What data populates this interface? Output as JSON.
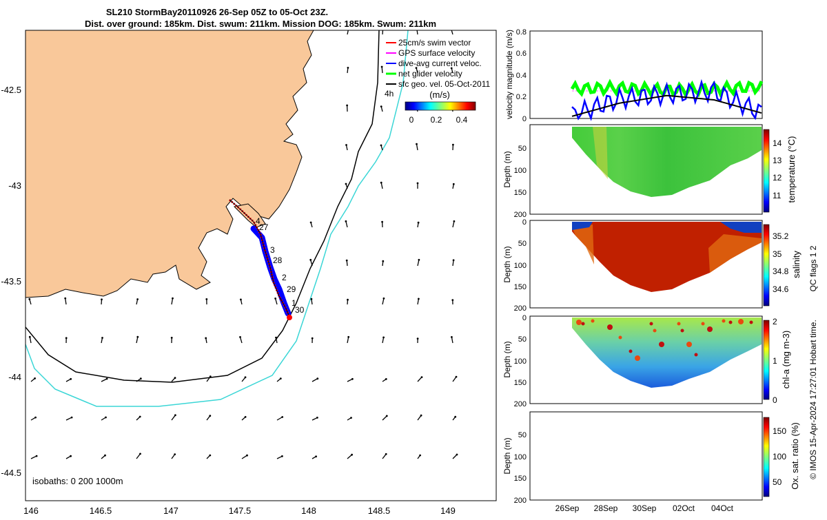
{
  "header": {
    "title_line1": "SL210 StormBay20110926 26-Sep 05Z to 05-Oct 23Z.",
    "title_line2": "Dist. over ground: 185km. Dist. swum: 211km. Mission DOG: 185km. Swum: 211km"
  },
  "map": {
    "x_ticks": [
      "146",
      "146.5",
      "147",
      "147.5",
      "148",
      "148.5",
      "149"
    ],
    "y_ticks": [
      "-42.5",
      "-43",
      "-43.5",
      "-44",
      "-44.5"
    ],
    "isobaths_label": "isobaths: 0   200  1000m",
    "depth_label_4h": "4h",
    "legend": [
      {
        "label": "25cm/s swim vector",
        "color": "#ff0000"
      },
      {
        "label": "GPS surface velocity",
        "color": "#ff00ff"
      },
      {
        "label": "dive-avg current veloc.",
        "color": "#0000ff"
      },
      {
        "label": "net glider velocity",
        "color": "#00ff00"
      },
      {
        "label": "sfc geo. vel. 05-Oct-2011",
        "color": "#000000"
      }
    ],
    "colorbar": {
      "unit": "(m/s)",
      "ticks": [
        "0",
        "0.2",
        "0.4"
      ]
    },
    "day_labels": [
      {
        "text": "4"
      },
      {
        "text": "27"
      },
      {
        "text": "3"
      },
      {
        "text": "28"
      },
      {
        "text": "2"
      },
      {
        "text": "29"
      },
      {
        "text": "1"
      },
      {
        "text": "30"
      }
    ],
    "colors": {
      "land": "#f9c89a",
      "isobath_200": "#000000",
      "isobath_1000": "#3ad6d6",
      "track": "#ff0000",
      "current": "#0000ff"
    }
  },
  "panels": {
    "velocity": {
      "ylabel": "velocity magnitude (m/s)",
      "yticks": [
        "0",
        "0.2",
        "0.4",
        "0.6",
        "0.8"
      ]
    },
    "temperature": {
      "ylabel": "Depth (m)",
      "cbar_label": "temperature (°C)",
      "cbar_ticks": [
        "11",
        "12",
        "13",
        "14"
      ],
      "yticks": [
        "50",
        "100",
        "150",
        "200"
      ]
    },
    "salinity": {
      "ylabel": "Depth (m)",
      "cbar_label": "salinity",
      "cbar_ticks": [
        "34.6",
        "34.8",
        "35",
        "35.2"
      ],
      "yticks": [
        "0",
        "50",
        "100",
        "150",
        "200"
      ]
    },
    "chla": {
      "ylabel": "Depth (m)",
      "cbar_label": "chl-a (mg m-3)",
      "cbar_ticks": [
        "0",
        "1",
        "2"
      ],
      "yticks": [
        "0",
        "50",
        "100",
        "150",
        "200"
      ]
    },
    "oxygen": {
      "ylabel": "Depth (m)",
      "cbar_label": "Ox. sat. ratio (%)",
      "cbar_ticks": [
        "50",
        "100",
        "150"
      ],
      "yticks": [
        "50",
        "100",
        "150",
        "200"
      ]
    },
    "x_dates": [
      "26Sep",
      "28Sep",
      "30Sep",
      "02Oct",
      "04Oct"
    ]
  },
  "side_note": {
    "qc_flags": "QC flags 1  2",
    "credit": "© IMOS 15-Apr-2024 17:27:01 Hobart time."
  },
  "chart_data": [
    {
      "type": "line",
      "title": "",
      "ylabel": "velocity magnitude (m/s)",
      "ylim": [
        0,
        0.8
      ],
      "x": [
        "26Sep",
        "28Sep",
        "30Sep",
        "02Oct",
        "04Oct"
      ],
      "series": [
        {
          "name": "net glider velocity",
          "color": "#00ff00",
          "values": [
            0.27,
            0.28,
            0.26,
            0.27,
            0.29
          ]
        },
        {
          "name": "dive-avg current veloc.",
          "color": "#0000ff",
          "values": [
            0.03,
            0.18,
            0.22,
            0.25,
            0.05
          ]
        },
        {
          "name": "sfc geo. vel. 05-Oct-2011",
          "color": "#000000",
          "values": [
            0.02,
            0.14,
            0.21,
            0.17,
            0.05
          ]
        }
      ]
    },
    {
      "type": "heatmap",
      "ylabel": "Depth (m)",
      "cbar_label": "temperature (°C)",
      "clim": [
        10.5,
        14.8
      ],
      "ylim": [
        0,
        200
      ],
      "max_depth_per_day": [
        30,
        90,
        150,
        150,
        100,
        60
      ]
    },
    {
      "type": "heatmap",
      "ylabel": "Depth (m)",
      "cbar_label": "salinity",
      "clim": [
        34.5,
        35.3
      ],
      "ylim": [
        0,
        200
      ],
      "max_depth_per_day": [
        30,
        90,
        150,
        150,
        100,
        60
      ]
    },
    {
      "type": "heatmap",
      "ylabel": "Depth (m)",
      "cbar_label": "chl-a (mg m-3)",
      "clim": [
        0,
        2
      ],
      "ylim": [
        0,
        200
      ],
      "max_depth_per_day": [
        30,
        90,
        150,
        150,
        100,
        60
      ]
    },
    {
      "type": "heatmap",
      "ylabel": "Depth (m)",
      "cbar_label": "Ox. sat. ratio (%)",
      "clim": [
        20,
        175
      ],
      "ylim": [
        0,
        200
      ]
    }
  ]
}
